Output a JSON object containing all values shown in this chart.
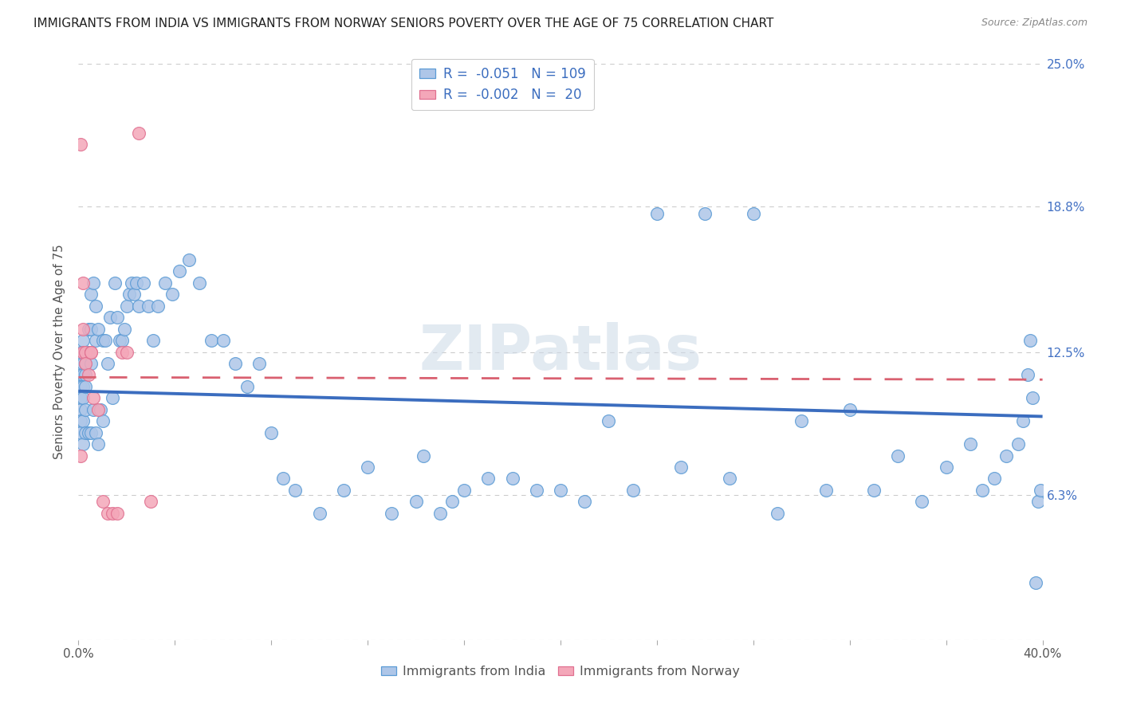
{
  "title": "IMMIGRANTS FROM INDIA VS IMMIGRANTS FROM NORWAY SENIORS POVERTY OVER THE AGE OF 75 CORRELATION CHART",
  "source": "Source: ZipAtlas.com",
  "ylabel": "Seniors Poverty Over the Age of 75",
  "xlim": [
    0.0,
    0.4
  ],
  "ylim": [
    0.0,
    0.25
  ],
  "india_color": "#aec6e8",
  "india_edge": "#5b9bd5",
  "norway_color": "#f4a7b9",
  "norway_edge": "#e07090",
  "india_R": -0.051,
  "india_N": 109,
  "norway_R": -0.002,
  "norway_N": 20,
  "india_line_color": "#3b6dbf",
  "norway_line_color": "#d96070",
  "watermark": "ZIPatlas",
  "grid_color": "#cccccc",
  "background_color": "#ffffff",
  "title_color": "#222222",
  "right_tick_color": "#4472c4",
  "india_x": [
    0.001,
    0.001,
    0.001,
    0.001,
    0.001,
    0.001,
    0.001,
    0.002,
    0.002,
    0.002,
    0.002,
    0.002,
    0.002,
    0.002,
    0.003,
    0.003,
    0.003,
    0.003,
    0.003,
    0.004,
    0.004,
    0.004,
    0.005,
    0.005,
    0.005,
    0.005,
    0.006,
    0.006,
    0.007,
    0.007,
    0.007,
    0.008,
    0.008,
    0.009,
    0.01,
    0.01,
    0.011,
    0.012,
    0.013,
    0.014,
    0.015,
    0.016,
    0.017,
    0.018,
    0.019,
    0.02,
    0.021,
    0.022,
    0.023,
    0.024,
    0.025,
    0.027,
    0.029,
    0.031,
    0.033,
    0.036,
    0.039,
    0.042,
    0.046,
    0.05,
    0.055,
    0.06,
    0.065,
    0.07,
    0.075,
    0.08,
    0.085,
    0.09,
    0.1,
    0.11,
    0.12,
    0.13,
    0.14,
    0.15,
    0.16,
    0.18,
    0.2,
    0.22,
    0.24,
    0.26,
    0.28,
    0.3,
    0.32,
    0.34,
    0.36,
    0.37,
    0.375,
    0.38,
    0.385,
    0.39,
    0.392,
    0.394,
    0.395,
    0.396,
    0.397,
    0.398,
    0.399,
    0.35,
    0.33,
    0.31,
    0.29,
    0.27,
    0.25,
    0.23,
    0.21,
    0.19,
    0.17,
    0.155,
    0.143
  ],
  "india_y": [
    0.125,
    0.115,
    0.11,
    0.105,
    0.1,
    0.095,
    0.09,
    0.13,
    0.12,
    0.115,
    0.11,
    0.105,
    0.095,
    0.085,
    0.12,
    0.115,
    0.11,
    0.1,
    0.09,
    0.135,
    0.125,
    0.09,
    0.15,
    0.135,
    0.12,
    0.09,
    0.155,
    0.1,
    0.145,
    0.13,
    0.09,
    0.135,
    0.085,
    0.1,
    0.13,
    0.095,
    0.13,
    0.12,
    0.14,
    0.105,
    0.155,
    0.14,
    0.13,
    0.13,
    0.135,
    0.145,
    0.15,
    0.155,
    0.15,
    0.155,
    0.145,
    0.155,
    0.145,
    0.13,
    0.145,
    0.155,
    0.15,
    0.16,
    0.165,
    0.155,
    0.13,
    0.13,
    0.12,
    0.11,
    0.12,
    0.09,
    0.07,
    0.065,
    0.055,
    0.065,
    0.075,
    0.055,
    0.06,
    0.055,
    0.065,
    0.07,
    0.065,
    0.095,
    0.185,
    0.185,
    0.185,
    0.095,
    0.1,
    0.08,
    0.075,
    0.085,
    0.065,
    0.07,
    0.08,
    0.085,
    0.095,
    0.115,
    0.13,
    0.105,
    0.025,
    0.06,
    0.065,
    0.06,
    0.065,
    0.065,
    0.055,
    0.07,
    0.075,
    0.065,
    0.06,
    0.065,
    0.07,
    0.06,
    0.08
  ],
  "norway_x": [
    0.001,
    0.001,
    0.002,
    0.002,
    0.002,
    0.003,
    0.003,
    0.004,
    0.005,
    0.005,
    0.006,
    0.008,
    0.01,
    0.012,
    0.014,
    0.016,
    0.018,
    0.02,
    0.025,
    0.03
  ],
  "norway_y": [
    0.215,
    0.08,
    0.155,
    0.135,
    0.125,
    0.125,
    0.12,
    0.115,
    0.125,
    0.125,
    0.105,
    0.1,
    0.06,
    0.055,
    0.055,
    0.055,
    0.125,
    0.125,
    0.22,
    0.06
  ],
  "india_line_y0": 0.108,
  "india_line_y1": 0.097,
  "norway_line_y0": 0.114,
  "norway_line_y1": 0.113
}
